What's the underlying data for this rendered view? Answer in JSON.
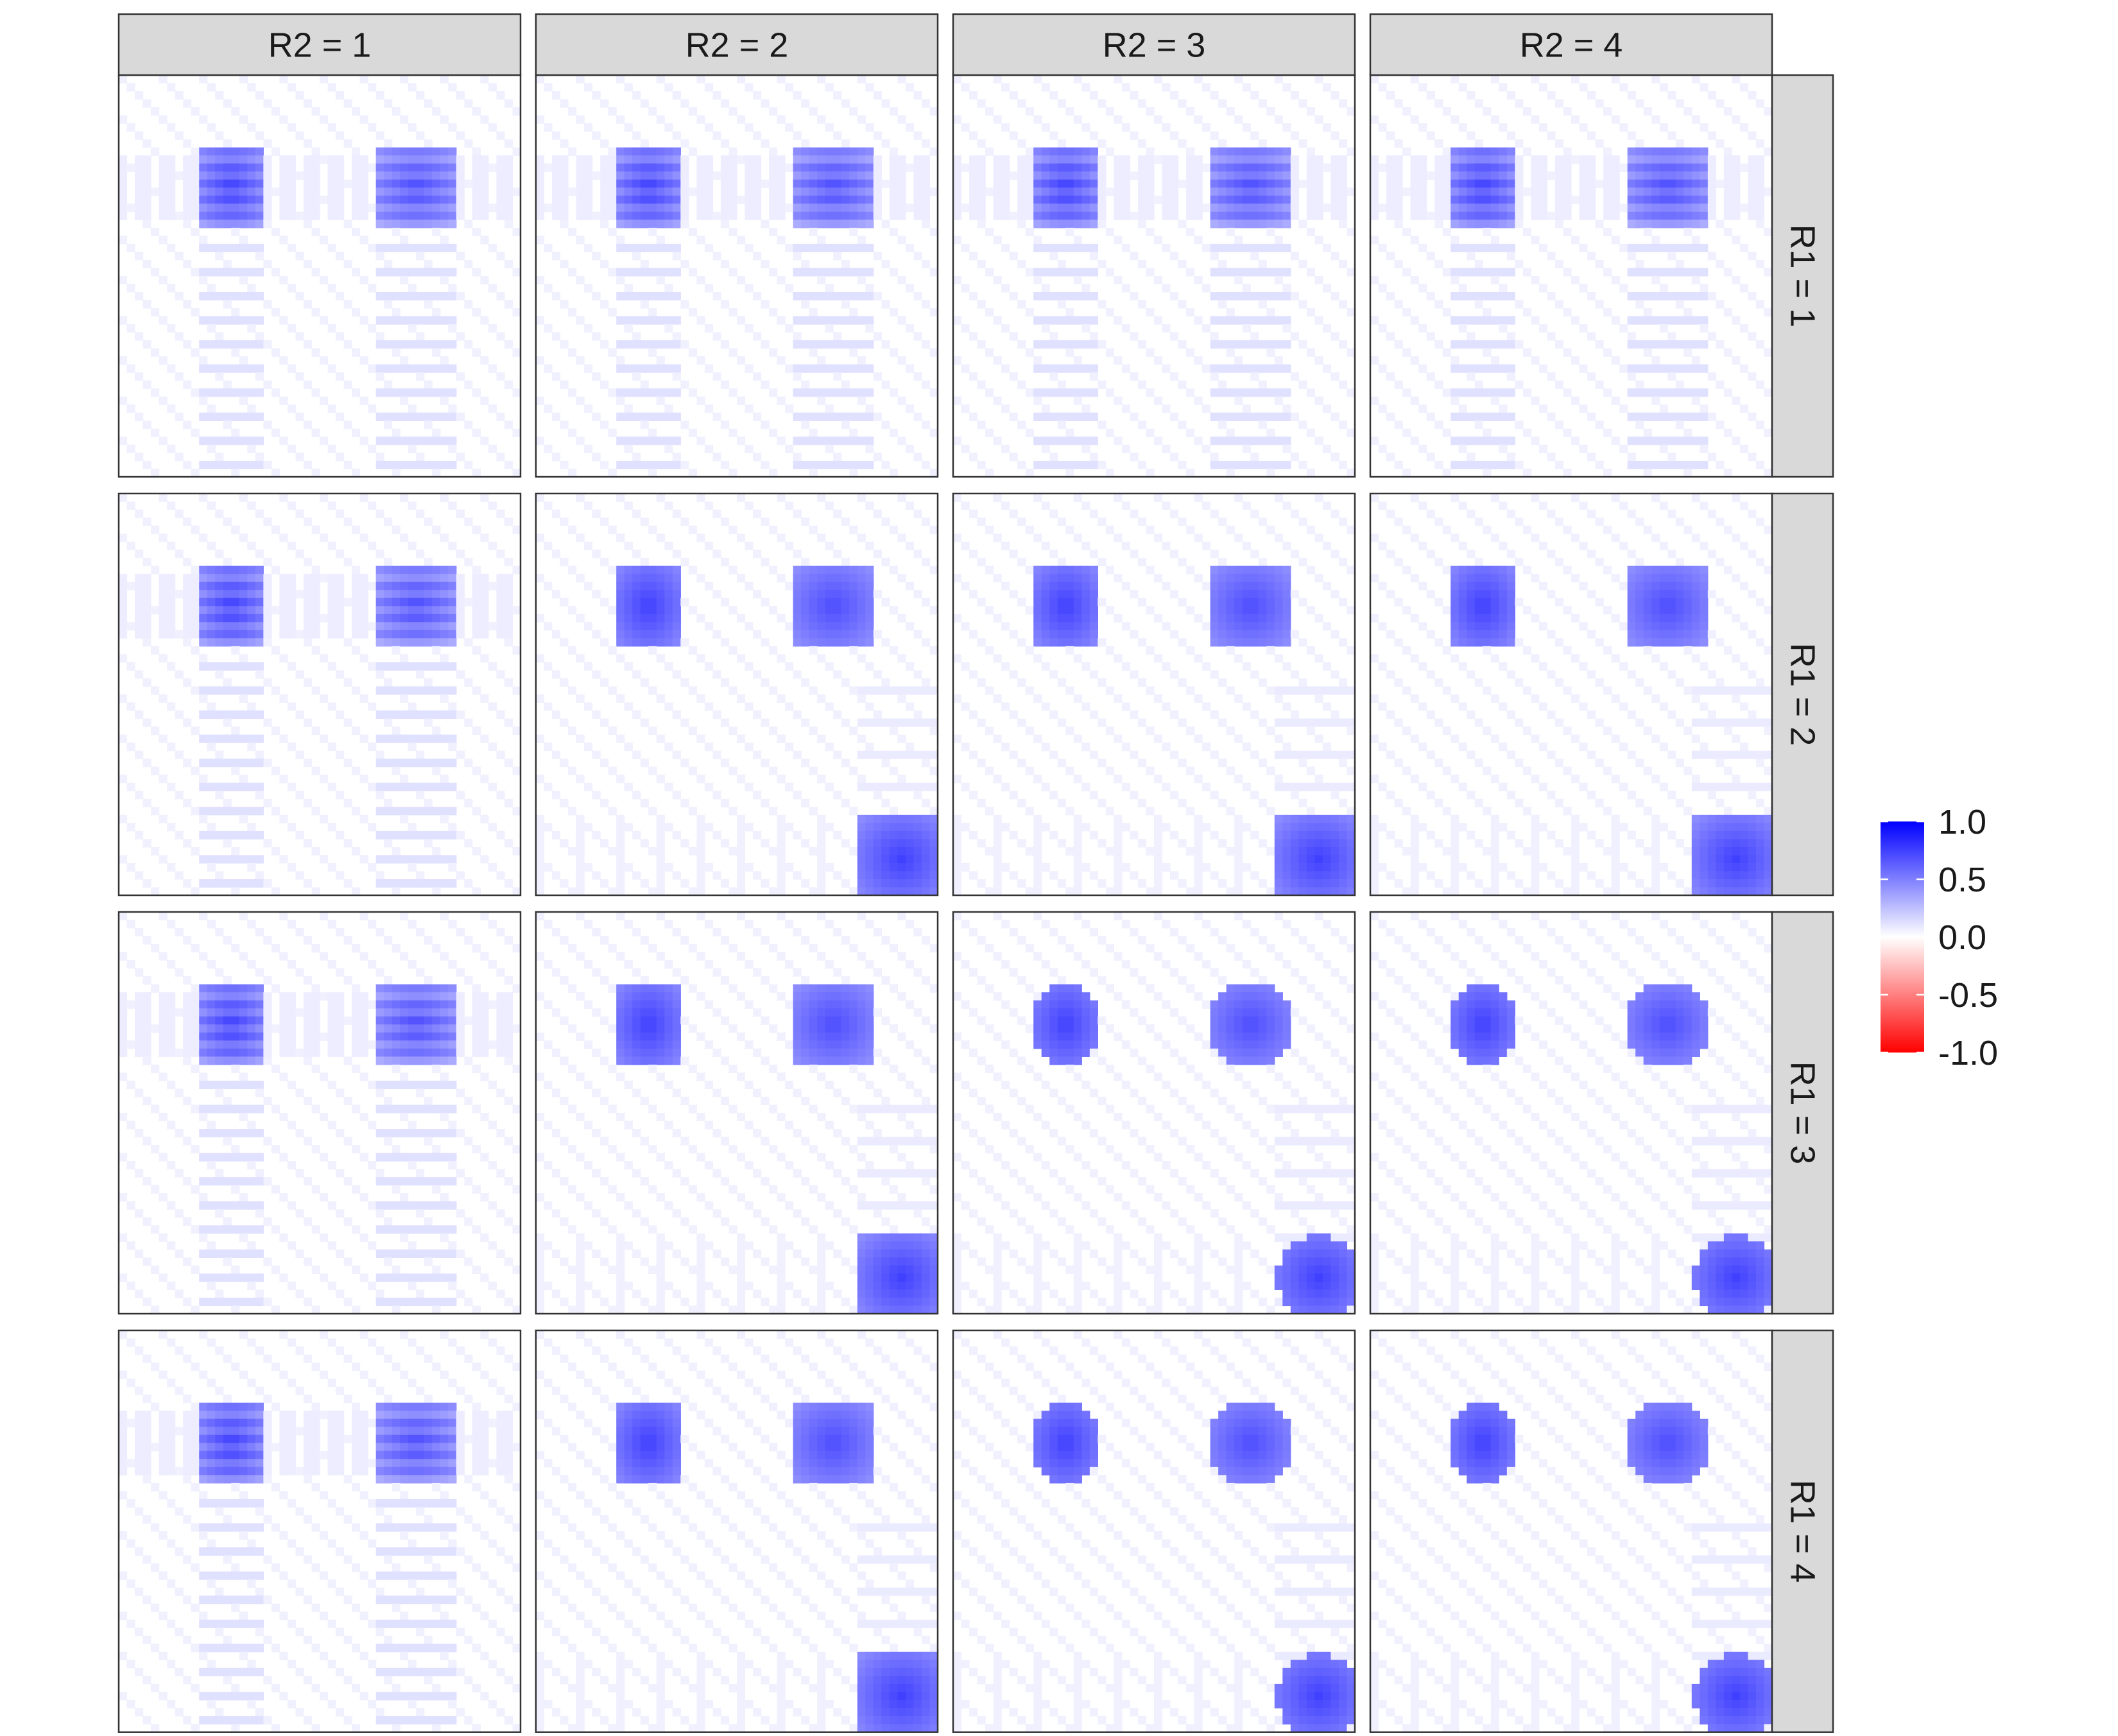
{
  "chart_data": {
    "type": "heatmap",
    "title": "",
    "xlabel": "",
    "ylabel": "",
    "facet_columns": [
      "R2 = 1",
      "R2 = 2",
      "R2 = 3",
      "R2 = 4"
    ],
    "facet_rows": [
      "R1 = 1",
      "R1 = 2",
      "R1 = 3",
      "R1 = 4"
    ],
    "grid_size": 50,
    "legend": {
      "position": "right",
      "range": [
        -1.0,
        1.0
      ],
      "ticks": [
        "1.0",
        "0.5",
        "0.0",
        "-0.5",
        "-1.0"
      ],
      "tick_values": [
        1.0,
        0.5,
        0.0,
        -0.5,
        -1.0
      ],
      "colors": {
        "high": "#0000FF",
        "mid": "#FFFFFF",
        "low": "#FF0000"
      }
    },
    "structure": {
      "top_left_block": {
        "rows": [
          9,
          18
        ],
        "cols": [
          10,
          17
        ],
        "peak_value": 0.75
      },
      "top_mid_block": {
        "rows": [
          9,
          18
        ],
        "cols": [
          32,
          41
        ],
        "peak_value": 0.7
      },
      "bottom_right_block": {
        "rows": [
          40,
          49
        ],
        "cols": [
          40,
          49
        ],
        "peak_value": 0.75,
        "present_when": "R1 >= 2 and R2 >= 2"
      },
      "round_block_shape_when": "R1 >= 3 and R2 >= 3",
      "background_value": 0.02
    }
  }
}
